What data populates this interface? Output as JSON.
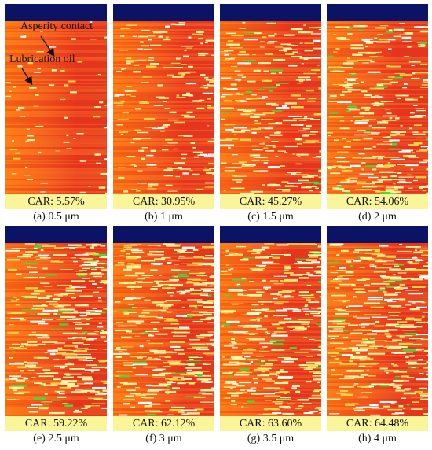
{
  "annotations": {
    "asperity_contact": "Asperity contact",
    "lubrication_oil": "Lubrication oil"
  },
  "colors": {
    "top_bar": "#0b1464",
    "car_bar": "#fbf59a",
    "oil_base": "#ef4c1d",
    "contact": "#fff5a0",
    "high_contact": "#3be03b"
  },
  "panels": [
    {
      "car": "CAR: 5.57%",
      "caption": "(a) 0.5 μm",
      "car_value": 5.57
    },
    {
      "car": "CAR: 30.95%",
      "caption": "(b) 1 μm",
      "car_value": 30.95
    },
    {
      "car": "CAR: 45.27%",
      "caption": "(c) 1.5 μm",
      "car_value": 45.27
    },
    {
      "car": "CAR: 54.06%",
      "caption": "(d) 2 μm",
      "car_value": 54.06
    },
    {
      "car": "CAR: 59.22%",
      "caption": "(e) 2.5 μm",
      "car_value": 59.22
    },
    {
      "car": "CAR: 62.12%",
      "caption": "(f) 3 μm",
      "car_value": 62.12
    },
    {
      "car": "CAR: 63.60%",
      "caption": "(g) 3.5 μm",
      "car_value": 63.6
    },
    {
      "car": "CAR: 64.48%",
      "caption": "(h) 4 μm",
      "car_value": 64.48
    }
  ]
}
